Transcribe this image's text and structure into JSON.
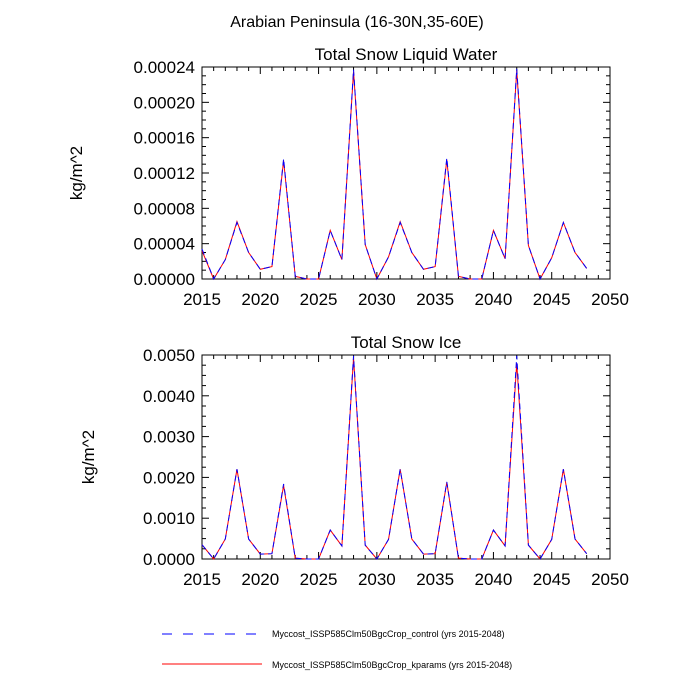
{
  "figure": {
    "title": "Arabian Peninsula (16-30N,35-60E)"
  },
  "legend": {
    "entries": [
      {
        "label": "Myccost_ISSP585Clm50BgcCrop_control (yrs 2015-2048)",
        "color": "#0000ff",
        "style": "dashed"
      },
      {
        "label": "Myccost_ISSP585Clm50BgcCrop_kparams (yrs 2015-2048)",
        "color": "#ff0000",
        "style": "solid"
      }
    ]
  },
  "colors": {
    "control": "#0000ff",
    "kparams": "#ff0000",
    "axis": "#000000"
  },
  "chart_data": [
    {
      "type": "line",
      "title": "Total Snow Liquid Water",
      "xlabel": "",
      "ylabel": "kg/m^2",
      "xlim": [
        2015,
        2050
      ],
      "ylim": [
        0,
        0.00024
      ],
      "xticks": [
        2015,
        2020,
        2025,
        2030,
        2035,
        2040,
        2045,
        2050
      ],
      "xtick_labels": [
        "2015",
        "2020",
        "2025",
        "2030",
        "2035",
        "2040",
        "2045",
        "2050"
      ],
      "yticks": [
        0,
        4e-05,
        8e-05,
        0.00012,
        0.00016,
        0.0002,
        0.00024
      ],
      "ytick_labels": [
        "0.00000",
        "0.00004",
        "0.00008",
        "0.00012",
        "0.00016",
        "0.00020",
        "0.00024"
      ],
      "grid": false,
      "x": [
        2015,
        2016,
        2017,
        2018,
        2019,
        2020,
        2021,
        2022,
        2023,
        2024,
        2025,
        2026,
        2027,
        2028,
        2029,
        2030,
        2031,
        2032,
        2033,
        2034,
        2035,
        2036,
        2037,
        2038,
        2039,
        2040,
        2041,
        2042,
        2043,
        2044,
        2045,
        2046,
        2047,
        2048
      ],
      "series": [
        {
          "name": "Myccost_ISSP585Clm50BgcCrop_control (yrs 2015-2048)",
          "values": [
            3.4e-05,
            0.0,
            2.2e-05,
            6.4e-05,
            3e-05,
            1.1e-05,
            1.4e-05,
            0.000136,
            3e-06,
            0.0,
            0.0,
            5.5e-05,
            2.2e-05,
            0.000237,
            3.9e-05,
            0.0,
            2.5e-05,
            6.4e-05,
            3e-05,
            1.1e-05,
            1.4e-05,
            0.000137,
            3e-06,
            0.0,
            0.0,
            5.5e-05,
            2.3e-05,
            0.000238,
            3.8e-05,
            0.0,
            2.4e-05,
            6.4e-05,
            3e-05,
            1.2e-05
          ]
        },
        {
          "name": "Myccost_ISSP585Clm50BgcCrop_kparams (yrs 2015-2048)",
          "values": [
            3.2e-05,
            0.0,
            2.2e-05,
            6.5e-05,
            3e-05,
            1.1e-05,
            1.4e-05,
            0.000134,
            3e-06,
            0.0,
            0.0,
            5.5e-05,
            2.2e-05,
            0.000235,
            3.9e-05,
            0.0,
            2.5e-05,
            6.5e-05,
            3e-05,
            1.1e-05,
            1.4e-05,
            0.000135,
            3e-06,
            0.0,
            0.0,
            5.5e-05,
            2.3e-05,
            0.000236,
            3.8e-05,
            0.0,
            2.4e-05,
            6.4e-05,
            3e-05,
            1.2e-05
          ]
        }
      ]
    },
    {
      "type": "line",
      "title": "Total Snow Ice",
      "xlabel": "",
      "ylabel": "kg/m^2",
      "xlim": [
        2015,
        2050
      ],
      "ylim": [
        0,
        0.005
      ],
      "xticks": [
        2015,
        2020,
        2025,
        2030,
        2035,
        2040,
        2045,
        2050
      ],
      "xtick_labels": [
        "2015",
        "2020",
        "2025",
        "2030",
        "2035",
        "2040",
        "2045",
        "2050"
      ],
      "yticks": [
        0,
        0.001,
        0.002,
        0.003,
        0.004,
        0.005
      ],
      "ytick_labels": [
        "0.0000",
        "0.0010",
        "0.0020",
        "0.0030",
        "0.0040",
        "0.0050"
      ],
      "grid": false,
      "x": [
        2015,
        2016,
        2017,
        2018,
        2019,
        2020,
        2021,
        2022,
        2023,
        2024,
        2025,
        2026,
        2027,
        2028,
        2029,
        2030,
        2031,
        2032,
        2033,
        2034,
        2035,
        2036,
        2037,
        2038,
        2039,
        2040,
        2041,
        2042,
        2043,
        2044,
        2045,
        2046,
        2047,
        2048
      ],
      "series": [
        {
          "name": "Myccost_ISSP585Clm50BgcCrop_control (yrs 2015-2048)",
          "values": [
            0.00035,
            0.0,
            0.00049,
            0.0022,
            0.00049,
            0.00012,
            0.00013,
            0.00184,
            2e-05,
            0.0,
            0.0,
            0.00071,
            0.00032,
            0.00498,
            0.00034,
            0.0,
            0.00048,
            0.0022,
            0.00049,
            0.00012,
            0.00013,
            0.00189,
            2e-05,
            0.0,
            0.0,
            0.00071,
            0.00032,
            0.00498,
            0.00034,
            0.0,
            0.00048,
            0.0022,
            0.00049,
            0.00013
          ]
        },
        {
          "name": "Myccost_ISSP585Clm50BgcCrop_kparams (yrs 2015-2048)",
          "values": [
            0.00035,
            0.0,
            0.00049,
            0.0022,
            0.00049,
            0.00012,
            0.00013,
            0.0018,
            2e-05,
            0.0,
            0.0,
            0.00071,
            0.00032,
            0.00493,
            0.00034,
            0.0,
            0.00048,
            0.0022,
            0.00049,
            0.00012,
            0.00013,
            0.00188,
            2e-05,
            0.0,
            0.0,
            0.00071,
            0.00032,
            0.0048,
            0.00034,
            0.0,
            0.00048,
            0.0022,
            0.00049,
            0.00013
          ]
        }
      ]
    }
  ]
}
